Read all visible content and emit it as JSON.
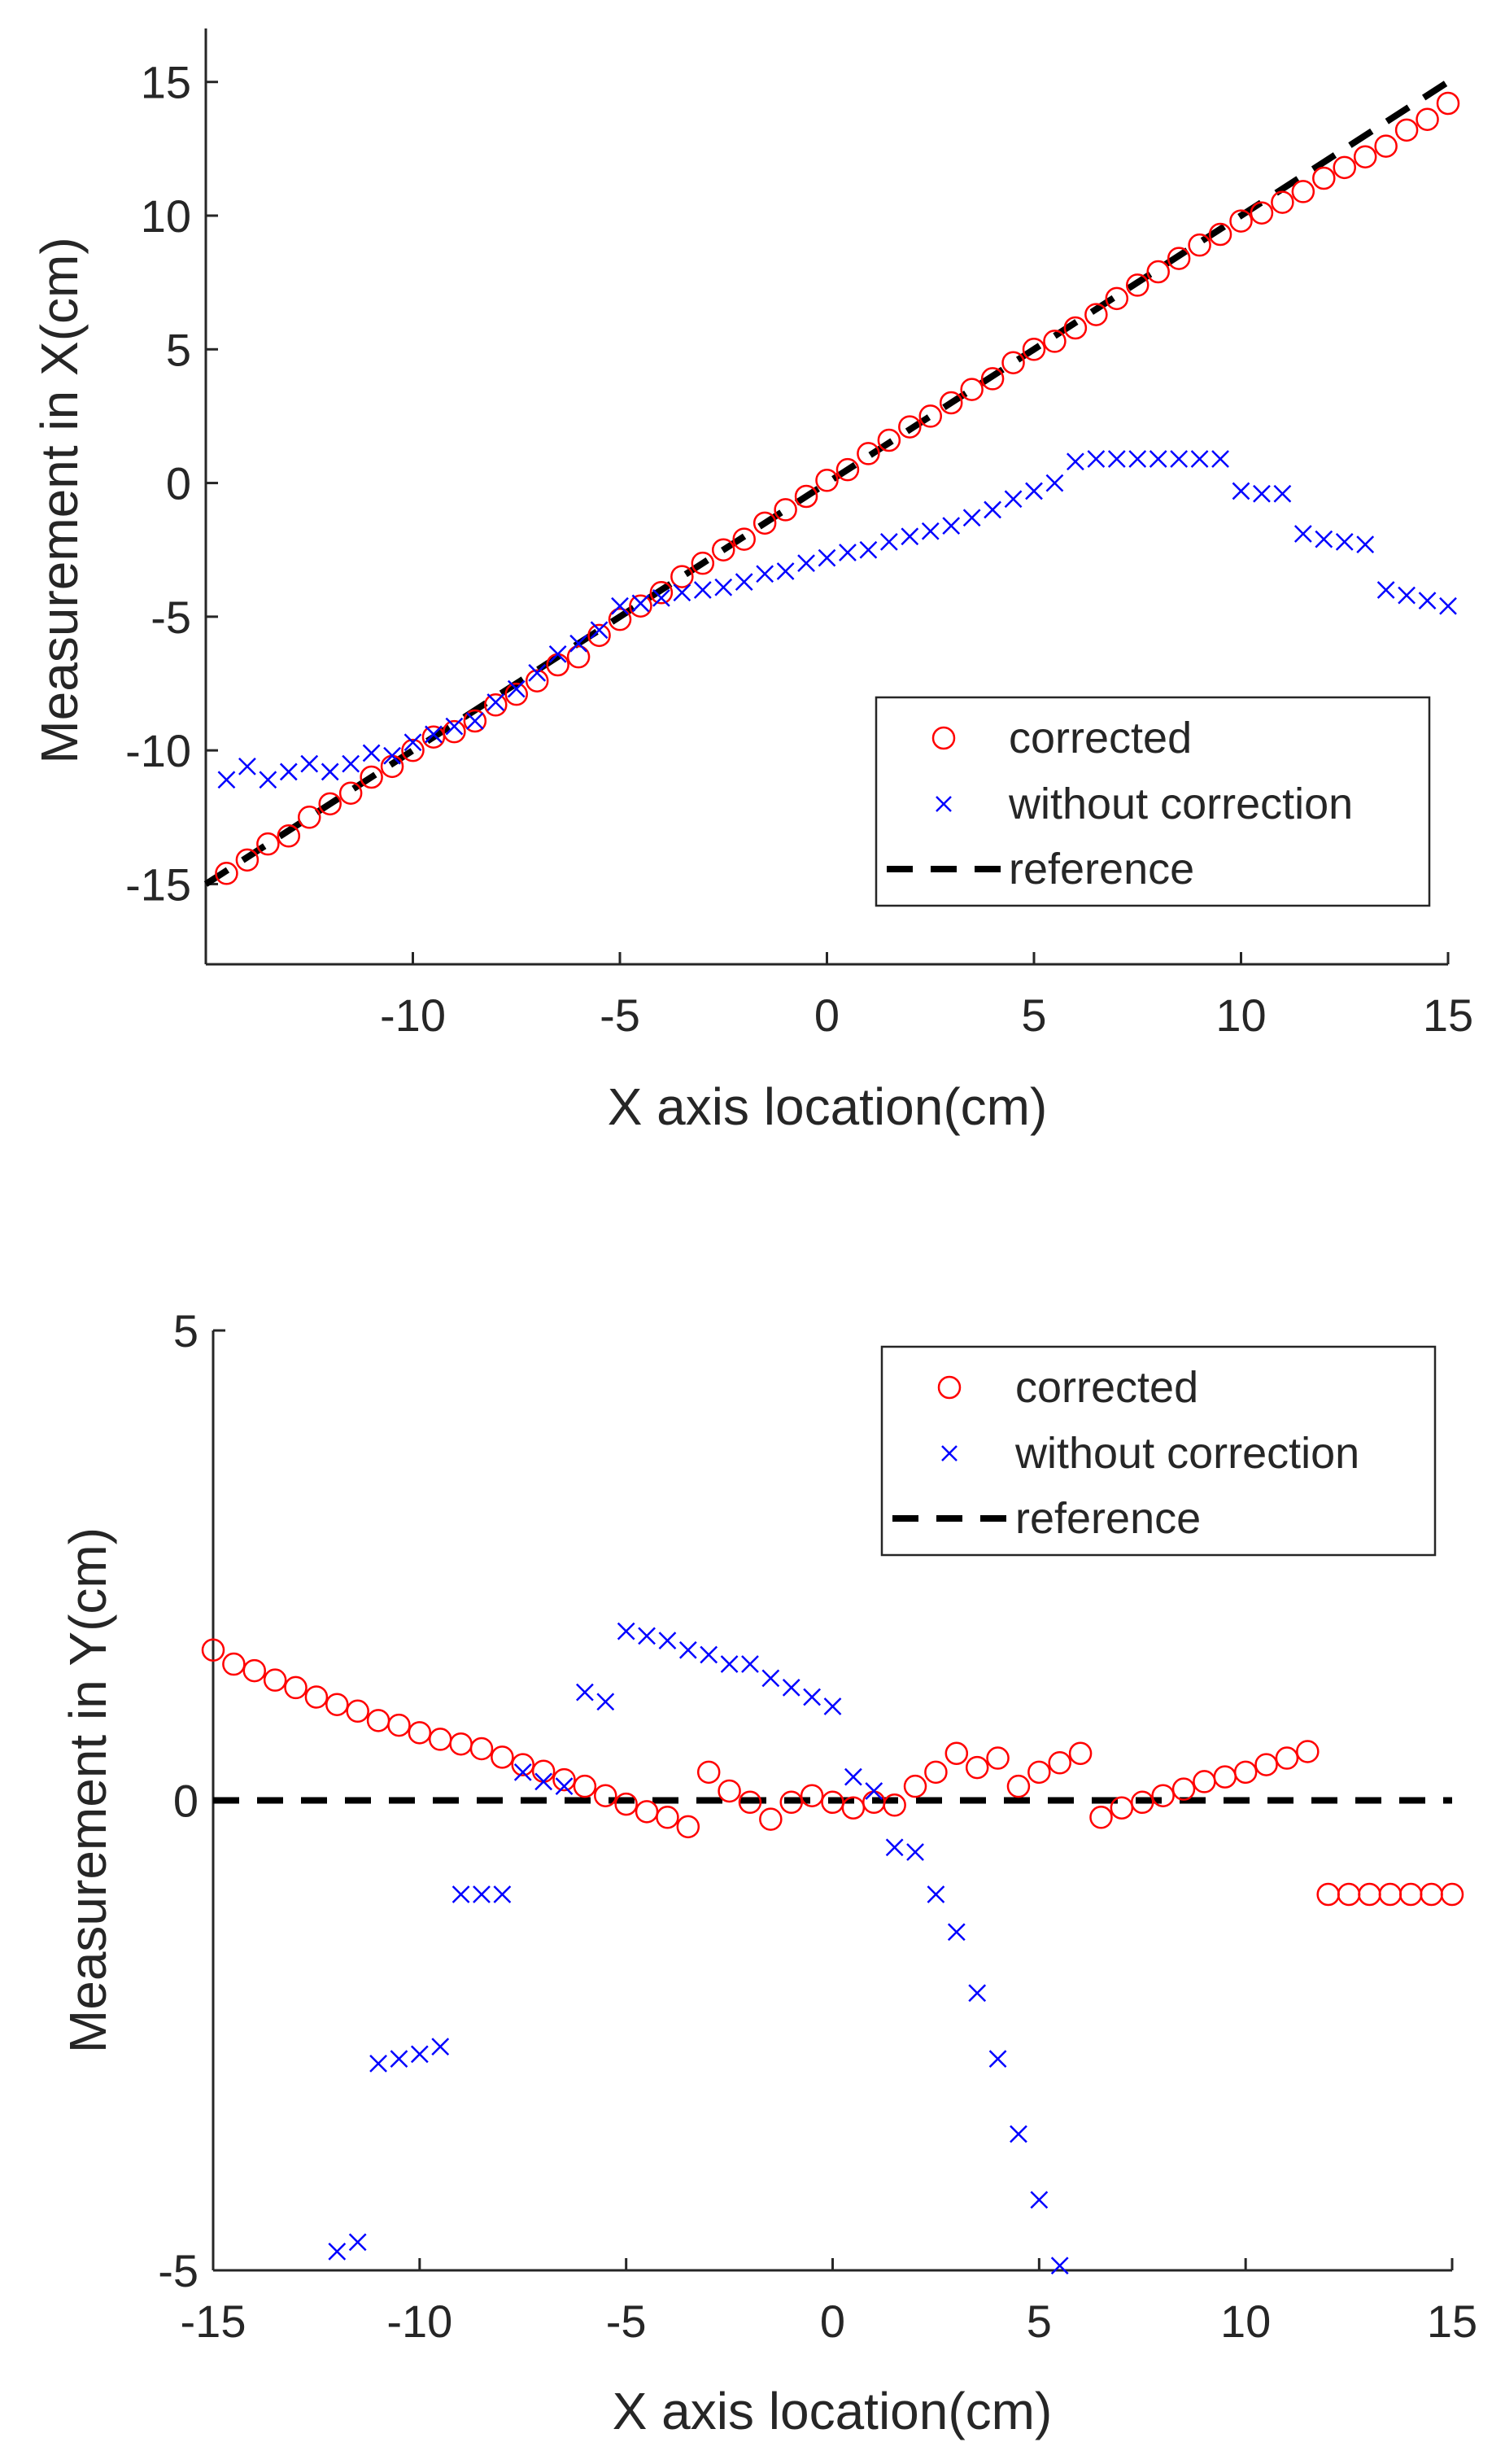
{
  "chart_data": [
    {
      "type": "scatter",
      "xlabel": "X axis location(cm)",
      "ylabel": "Measurement in X(cm)",
      "xlim": [
        -15,
        15
      ],
      "ylim": [
        -18,
        17
      ],
      "xticks": [
        -10,
        -5,
        0,
        5,
        10,
        15
      ],
      "yticks": [
        -15,
        -10,
        -5,
        0,
        5,
        10,
        15
      ],
      "grid": false,
      "legend_location": "bottom-right",
      "series": [
        {
          "name": "corrected",
          "marker": "circle",
          "color": "#ff0000",
          "x": [
            -14.5,
            -14,
            -13.5,
            -13,
            -12.5,
            -12,
            -11.5,
            -11,
            -10.5,
            -10,
            -9.5,
            -9,
            -8.5,
            -8,
            -7.5,
            -7,
            -6.5,
            -6,
            -5.5,
            -5,
            -4.5,
            -4,
            -3.5,
            -3,
            -2.5,
            -2,
            -1.5,
            -1,
            -0.5,
            0,
            0.5,
            1,
            1.5,
            2,
            2.5,
            3,
            3.5,
            4,
            4.5,
            5,
            5.5,
            6,
            6.5,
            7,
            7.5,
            8,
            8.5,
            9,
            9.5,
            10,
            10.5,
            11,
            11.5,
            12,
            12.5,
            13,
            13.5,
            14,
            14.5,
            15
          ],
          "y": [
            -14.6,
            -14.1,
            -13.5,
            -13.2,
            -12.5,
            -12,
            -11.6,
            -11,
            -10.6,
            -10,
            -9.5,
            -9.3,
            -8.9,
            -8.3,
            -7.9,
            -7.4,
            -6.8,
            -6.5,
            -5.7,
            -5.1,
            -4.6,
            -4.1,
            -3.5,
            -3,
            -2.5,
            -2.1,
            -1.5,
            -1,
            -0.5,
            0.1,
            0.5,
            1.1,
            1.6,
            2.1,
            2.5,
            3,
            3.5,
            3.9,
            4.5,
            5,
            5.3,
            5.8,
            6.3,
            6.9,
            7.4,
            7.9,
            8.4,
            8.9,
            9.3,
            9.8,
            10.1,
            10.5,
            10.9,
            11.4,
            11.8,
            12.2,
            12.6,
            13.2,
            13.6,
            14.2
          ]
        },
        {
          "name": "without correction",
          "marker": "x",
          "color": "#0000ff",
          "x": [
            -14.5,
            -14,
            -13.5,
            -13,
            -12.5,
            -12,
            -11.5,
            -11,
            -10.5,
            -10,
            -9.5,
            -9,
            -8.5,
            -8,
            -7.5,
            -7,
            -6.5,
            -6,
            -5.5,
            -5,
            -4.5,
            -4,
            -3.5,
            -3,
            -2.5,
            -2,
            -1.5,
            -1,
            -0.5,
            0,
            0.5,
            1,
            1.5,
            2,
            2.5,
            3,
            3.5,
            4,
            4.5,
            5,
            5.5,
            6,
            6.5,
            7,
            7.5,
            8,
            8.5,
            9,
            9.5,
            10,
            10.5,
            11,
            11.5,
            12,
            12.5,
            13,
            13.5,
            14,
            14.5,
            15
          ],
          "y": [
            -11.1,
            -10.6,
            -11.1,
            -10.8,
            -10.5,
            -10.8,
            -10.5,
            -10.1,
            -10.2,
            -9.7,
            -9.4,
            -9.1,
            -8.9,
            -8.2,
            -7.7,
            -7.1,
            -6.4,
            -6,
            -5.5,
            -4.6,
            -4.5,
            -4.3,
            -4.1,
            -4.0,
            -3.9,
            -3.7,
            -3.4,
            -3.3,
            -3.0,
            -2.8,
            -2.6,
            -2.5,
            -2.2,
            -2.0,
            -1.8,
            -1.6,
            -1.3,
            -1.0,
            -0.6,
            -0.3,
            0.0,
            0.8,
            0.9,
            0.9,
            0.9,
            0.9,
            0.9,
            0.9,
            0.9,
            -0.3,
            -0.4,
            -0.4,
            -1.9,
            -2.1,
            -2.2,
            -2.3,
            -4.0,
            -4.2,
            -4.4,
            -4.6
          ]
        },
        {
          "name": "reference",
          "marker": "dashed-line",
          "color": "#000000",
          "x": [
            -15,
            15
          ],
          "y": [
            -15,
            15
          ]
        }
      ]
    },
    {
      "type": "scatter",
      "xlabel": "X axis location(cm)",
      "ylabel": "Measurement in Y(cm)",
      "xlim": [
        -15,
        15
      ],
      "ylim": [
        -5,
        5
      ],
      "xticks": [
        -15,
        -10,
        -5,
        0,
        5,
        10,
        15
      ],
      "yticks": [
        -5,
        0,
        5
      ],
      "grid": false,
      "legend_location": "top-right",
      "series": [
        {
          "name": "corrected",
          "marker": "circle",
          "color": "#ff0000",
          "x": [
            -15,
            -14.5,
            -14,
            -13.5,
            -13,
            -12.5,
            -12,
            -11.5,
            -11,
            -10.5,
            -10,
            -9.5,
            -9,
            -8.5,
            -8,
            -7.5,
            -7,
            -6.5,
            -6,
            -5.5,
            -5,
            -4.5,
            -4,
            -3.5,
            -3,
            -2.5,
            -2,
            -1.5,
            -1,
            -0.5,
            0,
            0.5,
            1,
            1.5,
            2,
            2.5,
            3,
            3.5,
            4,
            4.5,
            5,
            5.5,
            6,
            6.5,
            7,
            7.5,
            8,
            8.5,
            9,
            9.5,
            10,
            10.5,
            11,
            11.5,
            12,
            12.5,
            13,
            13.5,
            14,
            14.5,
            15
          ],
          "y": [
            1.6,
            1.45,
            1.38,
            1.28,
            1.2,
            1.1,
            1.02,
            0.95,
            0.85,
            0.8,
            0.72,
            0.65,
            0.6,
            0.55,
            0.46,
            0.38,
            0.31,
            0.22,
            0.15,
            0.05,
            -0.04,
            -0.12,
            -0.18,
            -0.28,
            0.3,
            0.1,
            -0.02,
            -0.2,
            -0.02,
            0.05,
            -0.02,
            -0.08,
            -0.02,
            -0.05,
            0.15,
            0.3,
            0.5,
            0.35,
            0.45,
            0.15,
            0.3,
            0.4,
            0.5,
            -0.18,
            -0.08,
            -0.02,
            0.05,
            0.12,
            0.2,
            0.25,
            0.3,
            0.38,
            0.45,
            0.52,
            -1.0,
            -1.0,
            -1.0,
            -1.0,
            -1.0,
            -1.0,
            -1.0
          ]
        },
        {
          "name": "without correction",
          "marker": "x",
          "color": "#0000ff",
          "x": [
            -12,
            -11.5,
            -11,
            -10.5,
            -10,
            -9.5,
            -9,
            -8.5,
            -8,
            -7.5,
            -7,
            -6.5,
            -6,
            -5.5,
            -5,
            -4.5,
            -4,
            -3.5,
            -3,
            -2.5,
            -2,
            -1.5,
            -1,
            -0.5,
            0,
            0.5,
            1,
            1.5,
            2,
            2.5,
            3,
            3.5,
            4,
            4.5,
            5,
            5.5
          ],
          "y": [
            -4.8,
            -4.7,
            -2.8,
            -2.75,
            -2.7,
            -2.62,
            -1.0,
            -1.0,
            -1.0,
            0.3,
            0.2,
            0.15,
            1.15,
            1.05,
            1.8,
            1.75,
            1.7,
            1.6,
            1.55,
            1.45,
            1.45,
            1.3,
            1.2,
            1.1,
            1.0,
            0.25,
            0.1,
            -0.5,
            -0.55,
            -1.0,
            -1.4,
            -2.05,
            -2.75,
            -3.55,
            -4.25,
            -4.95
          ]
        },
        {
          "name": "reference",
          "marker": "dashed-line",
          "color": "#000000",
          "x": [
            -15,
            15
          ],
          "y": [
            0,
            0
          ]
        }
      ]
    }
  ]
}
